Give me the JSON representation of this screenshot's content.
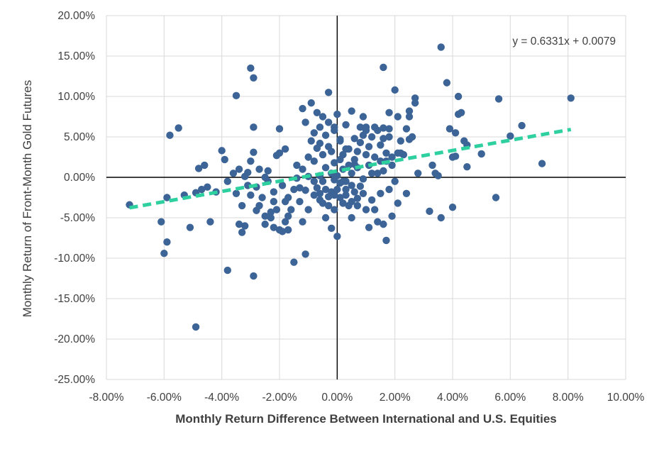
{
  "chart_data": {
    "type": "scatter",
    "title": "",
    "xlabel": "Monthly Return Difference Between International and U.S. Equities",
    "ylabel": "Monthly Return of Front-Month Gold Futures",
    "xlim": [
      -0.08,
      0.1
    ],
    "ylim": [
      -0.25,
      0.2
    ],
    "x_ticks": [
      -0.08,
      -0.06,
      -0.04,
      -0.02,
      0.0,
      0.02,
      0.04,
      0.06,
      0.08,
      0.1
    ],
    "x_tick_labels": [
      "-8.00%",
      "-6.00%",
      "-4.00%",
      "-2.00%",
      "0.00%",
      "2.00%",
      "4.00%",
      "6.00%",
      "8.00%",
      "10.00%"
    ],
    "y_ticks": [
      0.2,
      0.15,
      0.1,
      0.05,
      0.0,
      -0.05,
      -0.1,
      -0.15,
      -0.2,
      -0.25
    ],
    "y_tick_labels": [
      "20.00%",
      "15.00%",
      "10.00%",
      "5.00%",
      "0.00%",
      "-5.00%",
      "-10.00%",
      "-15.00%",
      "-20.00%",
      "-25.00%"
    ],
    "grid": true,
    "legend": "none",
    "colors": {
      "points": "#3d6496",
      "trendline": "#2fd0a0",
      "axis": "#000000",
      "grid": "#d9d9d9"
    },
    "trendline": {
      "type": "linear",
      "slope": 0.6331,
      "intercept": 0.0079,
      "x_range": [
        -0.072,
        0.081
      ],
      "style": "dashed",
      "equation_label": "y = 0.6331x + 0.0079"
    },
    "series": [
      {
        "points": [
          [
            -0.049,
            -0.185
          ],
          [
            -0.072,
            -0.034
          ],
          [
            -0.061,
            -0.055
          ],
          [
            -0.06,
            -0.094
          ],
          [
            -0.059,
            -0.08
          ],
          [
            -0.059,
            -0.025
          ],
          [
            -0.058,
            0.052
          ],
          [
            -0.055,
            0.061
          ],
          [
            -0.053,
            -0.022
          ],
          [
            -0.051,
            -0.062
          ],
          [
            -0.049,
            -0.019
          ],
          [
            -0.048,
            0.011
          ],
          [
            -0.047,
            -0.015
          ],
          [
            -0.046,
            0.015
          ],
          [
            -0.045,
            -0.012
          ],
          [
            -0.044,
            -0.055
          ],
          [
            -0.042,
            -0.018
          ],
          [
            -0.04,
            0.033
          ],
          [
            -0.039,
            0.022
          ],
          [
            -0.038,
            -0.005
          ],
          [
            -0.038,
            -0.115
          ],
          [
            -0.036,
            0.005
          ],
          [
            -0.035,
            -0.02
          ],
          [
            -0.035,
            0.101
          ],
          [
            -0.034,
            0.01
          ],
          [
            -0.034,
            -0.058
          ],
          [
            -0.033,
            -0.068
          ],
          [
            -0.033,
            -0.035
          ],
          [
            -0.032,
            -0.06
          ],
          [
            -0.032,
            0.001
          ],
          [
            -0.031,
            0.006
          ],
          [
            -0.031,
            -0.01
          ],
          [
            -0.03,
            -0.022
          ],
          [
            -0.03,
            0.02
          ],
          [
            -0.03,
            0.135
          ],
          [
            -0.029,
            0.123
          ],
          [
            -0.029,
            -0.122
          ],
          [
            -0.029,
            0.062
          ],
          [
            -0.029,
            0.031
          ],
          [
            -0.028,
            -0.041
          ],
          [
            -0.028,
            -0.012
          ],
          [
            -0.027,
            0.01
          ],
          [
            -0.027,
            -0.035
          ],
          [
            -0.026,
            -0.025
          ],
          [
            -0.025,
            0.0
          ],
          [
            -0.025,
            -0.048
          ],
          [
            -0.025,
            -0.058
          ],
          [
            -0.024,
            -0.005
          ],
          [
            -0.024,
            0.008
          ],
          [
            -0.023,
            -0.043
          ],
          [
            -0.023,
            -0.05
          ],
          [
            -0.022,
            -0.03
          ],
          [
            -0.022,
            -0.062
          ],
          [
            -0.022,
            -0.018
          ],
          [
            -0.021,
            0.027
          ],
          [
            -0.021,
            -0.04
          ],
          [
            -0.02,
            -0.065
          ],
          [
            -0.02,
            0.06
          ],
          [
            -0.02,
            0.03
          ],
          [
            -0.019,
            -0.067
          ],
          [
            -0.019,
            -0.01
          ],
          [
            -0.018,
            -0.03
          ],
          [
            -0.018,
            0.035
          ],
          [
            -0.018,
            -0.055
          ],
          [
            -0.017,
            -0.048
          ],
          [
            -0.017,
            -0.065
          ],
          [
            -0.017,
            -0.025
          ],
          [
            -0.016,
            -0.04
          ],
          [
            -0.015,
            -0.015
          ],
          [
            -0.015,
            -0.105
          ],
          [
            -0.014,
            -0.001
          ],
          [
            -0.014,
            0.015
          ],
          [
            -0.013,
            -0.013
          ],
          [
            -0.013,
            -0.03
          ],
          [
            -0.012,
            0.01
          ],
          [
            -0.012,
            -0.055
          ],
          [
            -0.012,
            0.085
          ],
          [
            -0.011,
            0.068
          ],
          [
            -0.011,
            -0.016
          ],
          [
            -0.011,
            -0.095
          ],
          [
            -0.01,
            -0.04
          ],
          [
            -0.01,
            0.025
          ],
          [
            -0.01,
            0.001
          ],
          [
            -0.009,
            0.045
          ],
          [
            -0.009,
            0.092
          ],
          [
            -0.008,
            -0.005
          ],
          [
            -0.008,
            -0.022
          ],
          [
            -0.008,
            0.02
          ],
          [
            -0.008,
            0.055
          ],
          [
            -0.007,
            0.08
          ],
          [
            -0.007,
            0.036
          ],
          [
            -0.007,
            -0.013
          ],
          [
            -0.006,
            0.002
          ],
          [
            -0.006,
            0.062
          ],
          [
            -0.006,
            -0.028
          ],
          [
            -0.006,
            0.042
          ],
          [
            -0.006,
            -0.02
          ],
          [
            -0.005,
            0.028
          ],
          [
            -0.005,
            -0.005
          ],
          [
            -0.005,
            0.075
          ],
          [
            -0.005,
            -0.032
          ],
          [
            -0.004,
            0.012
          ],
          [
            -0.004,
            -0.015
          ],
          [
            -0.004,
            0.052
          ],
          [
            -0.004,
            -0.05
          ],
          [
            -0.003,
            0.038
          ],
          [
            -0.003,
            -0.035
          ],
          [
            -0.003,
            -0.024
          ],
          [
            -0.003,
            0.105
          ],
          [
            -0.003,
            0.068
          ],
          [
            -0.002,
            0.032
          ],
          [
            -0.002,
            -0.018
          ],
          [
            -0.002,
            -0.063
          ],
          [
            -0.002,
            0.005
          ],
          [
            -0.001,
            0.058
          ],
          [
            -0.001,
            0.018
          ],
          [
            -0.001,
            -0.022
          ],
          [
            -0.001,
            0.062
          ],
          [
            -0.001,
            -0.04
          ],
          [
            -0.001,
            -0.003
          ],
          [
            0.0,
            0.002
          ],
          [
            0.0,
            -0.015
          ],
          [
            0.0,
            0.078
          ],
          [
            0.0,
            -0.073
          ],
          [
            0.001,
            0.045
          ],
          [
            0.001,
            -0.007
          ],
          [
            0.001,
            0.022
          ],
          [
            0.001,
            -0.025
          ],
          [
            0.001,
            0.047
          ],
          [
            0.002,
            -0.032
          ],
          [
            0.002,
            0.01
          ],
          [
            0.002,
            -0.005
          ],
          [
            0.002,
            0.028
          ],
          [
            0.003,
            0.065
          ],
          [
            0.003,
            -0.005
          ],
          [
            0.003,
            0.035
          ],
          [
            0.003,
            -0.015
          ],
          [
            0.003,
            -0.022
          ],
          [
            0.004,
            0.015
          ],
          [
            0.004,
            -0.035
          ],
          [
            0.004,
            0.035
          ],
          [
            0.005,
            0.082
          ],
          [
            0.005,
            -0.05
          ],
          [
            0.005,
            -0.03
          ],
          [
            0.005,
            -0.01
          ],
          [
            0.005,
            0.005
          ],
          [
            0.006,
            0.048
          ],
          [
            0.006,
            -0.018
          ],
          [
            0.006,
            0.022
          ],
          [
            0.006,
            0.016
          ],
          [
            0.007,
            0.032
          ],
          [
            0.007,
            -0.035
          ],
          [
            0.007,
            0.012
          ],
          [
            0.007,
            -0.026
          ],
          [
            0.008,
            0.062
          ],
          [
            0.008,
            -0.011
          ],
          [
            0.008,
            0.043
          ],
          [
            0.009,
            0.075
          ],
          [
            0.009,
            -0.002
          ],
          [
            0.009,
            0.052
          ],
          [
            0.009,
            -0.02
          ],
          [
            0.01,
            0.058
          ],
          [
            0.01,
            -0.04
          ],
          [
            0.01,
            0.028
          ],
          [
            0.01,
            0.062
          ],
          [
            0.011,
            0.015
          ],
          [
            0.011,
            -0.062
          ],
          [
            0.011,
            0.038
          ],
          [
            0.012,
            0.005
          ],
          [
            0.012,
            -0.028
          ],
          [
            0.012,
            0.05
          ],
          [
            0.013,
            0.025
          ],
          [
            0.013,
            0.062
          ],
          [
            0.013,
            -0.04
          ],
          [
            0.014,
            0.005
          ],
          [
            0.014,
            0.058
          ],
          [
            0.014,
            -0.055
          ],
          [
            0.015,
            0.02
          ],
          [
            0.015,
            0.04
          ],
          [
            0.015,
            -0.02
          ],
          [
            0.016,
            0.048
          ],
          [
            0.016,
            0.008
          ],
          [
            0.016,
            0.061
          ],
          [
            0.016,
            -0.058
          ],
          [
            0.016,
            0.136
          ],
          [
            0.017,
            -0.078
          ],
          [
            0.017,
            0.02
          ],
          [
            0.017,
            0.03
          ],
          [
            0.018,
            0.05
          ],
          [
            0.018,
            0.08
          ],
          [
            0.018,
            -0.015
          ],
          [
            0.018,
            0.06
          ],
          [
            0.019,
            0.025
          ],
          [
            0.019,
            -0.048
          ],
          [
            0.019,
            0.015
          ],
          [
            0.02,
            0.108
          ],
          [
            0.02,
            -0.005
          ],
          [
            0.021,
            0.075
          ],
          [
            0.021,
            0.03
          ],
          [
            0.021,
            -0.032
          ],
          [
            0.022,
            0.045
          ],
          [
            0.022,
            0.03
          ],
          [
            0.023,
            0.028
          ],
          [
            0.024,
            -0.02
          ],
          [
            0.024,
            0.06
          ],
          [
            0.025,
            0.047
          ],
          [
            0.025,
            0.082
          ],
          [
            0.025,
            0.075
          ],
          [
            0.026,
            0.05
          ],
          [
            0.027,
            0.098
          ],
          [
            0.027,
            0.092
          ],
          [
            0.028,
            0.005
          ],
          [
            0.032,
            -0.042
          ],
          [
            0.033,
            0.015
          ],
          [
            0.034,
            0.005
          ],
          [
            0.035,
            0.002
          ],
          [
            0.036,
            0.161
          ],
          [
            0.036,
            -0.05
          ],
          [
            0.038,
            0.117
          ],
          [
            0.039,
            0.06
          ],
          [
            0.04,
            0.025
          ],
          [
            0.04,
            -0.037
          ],
          [
            0.041,
            0.055
          ],
          [
            0.041,
            0.026
          ],
          [
            0.042,
            0.1
          ],
          [
            0.042,
            0.078
          ],
          [
            0.043,
            0.08
          ],
          [
            0.044,
            0.045
          ],
          [
            0.045,
            0.04
          ],
          [
            0.045,
            0.013
          ],
          [
            0.05,
            0.029
          ],
          [
            0.055,
            -0.025
          ],
          [
            0.056,
            0.097
          ],
          [
            0.06,
            0.051
          ],
          [
            0.064,
            0.064
          ],
          [
            0.071,
            0.017
          ],
          [
            0.081,
            0.098
          ]
        ]
      }
    ]
  }
}
